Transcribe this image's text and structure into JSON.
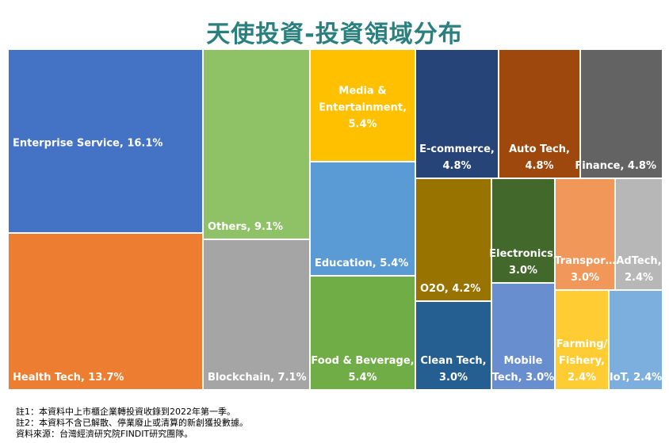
{
  "title": "天使投資-投資領域分布",
  "chart_data": {
    "type": "treemap",
    "title": "天使投資-投資領域分布",
    "items": [
      {
        "name": "Enterprise Service",
        "label_lines": [
          "Enterprise Service, 16.1%"
        ],
        "value": 16.1,
        "color": "#4472c4",
        "text_color": "#ffffff",
        "anchor": "start",
        "valign": "middle"
      },
      {
        "name": "Health Tech",
        "label_lines": [
          "Health Tech, 13.7%"
        ],
        "value": 13.7,
        "color": "#ed7d31",
        "text_color": "#ffffff",
        "anchor": "start",
        "valign": "bottom"
      },
      {
        "name": "Others",
        "label_lines": [
          "Others, 9.1%"
        ],
        "value": 9.1,
        "color": "#8fc166",
        "text_color": "#ffffff",
        "anchor": "start",
        "valign": "bottom"
      },
      {
        "name": "Blockchain",
        "label_lines": [
          "Blockchain, 7.1%"
        ],
        "value": 7.1,
        "color": "#a5a5a5",
        "text_color": "#ffffff",
        "anchor": "start",
        "valign": "bottom"
      },
      {
        "name": "Media & Entertainment",
        "label_lines": [
          "Media &",
          "Entertainment,",
          "5.4%"
        ],
        "value": 5.4,
        "color": "#ffc000",
        "text_color": "#ffffff",
        "anchor": "middle",
        "valign": "middle"
      },
      {
        "name": "Education",
        "label_lines": [
          "Education, 5.4%"
        ],
        "value": 5.4,
        "color": "#5b9bd5",
        "text_color": "#ffffff",
        "anchor": "start",
        "valign": "bottom"
      },
      {
        "name": "Food & Beverage",
        "label_lines": [
          "Food & Beverage,",
          "5.4%"
        ],
        "value": 5.4,
        "color": "#70ad47",
        "text_color": "#ffffff",
        "anchor": "middle",
        "valign": "bottom"
      },
      {
        "name": "E-commerce",
        "label_lines": [
          "E-commerce,",
          "4.8%"
        ],
        "value": 4.8,
        "color": "#264478",
        "text_color": "#ffffff",
        "anchor": "middle",
        "valign": "bottom"
      },
      {
        "name": "Auto Tech",
        "label_lines": [
          "Auto Tech,",
          "4.8%"
        ],
        "value": 4.8,
        "color": "#9e480e",
        "text_color": "#ffffff",
        "anchor": "middle",
        "valign": "bottom"
      },
      {
        "name": "Finance",
        "label_lines": [
          "Finance, 4.8%"
        ],
        "value": 4.8,
        "color": "#636363",
        "text_color": "#ffffff",
        "anchor": "end",
        "valign": "bottom"
      },
      {
        "name": "O2O",
        "label_lines": [
          "O2O, 4.2%"
        ],
        "value": 4.2,
        "color": "#997300",
        "text_color": "#ffffff",
        "anchor": "start",
        "valign": "bottom"
      },
      {
        "name": "Clean Tech",
        "label_lines": [
          "Clean Tech,",
          "3.0%"
        ],
        "value": 3.0,
        "color": "#255e91",
        "text_color": "#ffffff",
        "anchor": "middle",
        "valign": "bottom"
      },
      {
        "name": "Electronics",
        "label_lines": [
          "Electronics,",
          "3.0%"
        ],
        "value": 3.0,
        "color": "#43682b",
        "text_color": "#ffffff",
        "anchor": "middle",
        "valign": "bottom"
      },
      {
        "name": "Mobile Tech",
        "label_lines": [
          "Mobile",
          "Tech, 3.0%"
        ],
        "value": 3.0,
        "color": "#698ed0",
        "text_color": "#ffffff",
        "anchor": "middle",
        "valign": "bottom"
      },
      {
        "name": "Transportation",
        "label_lines": [
          "Transpor…",
          "3.0%"
        ],
        "value": 3.0,
        "color": "#f1975a",
        "text_color": "#ffffff",
        "anchor": "middle",
        "valign": "bottom"
      },
      {
        "name": "AdTech",
        "label_lines": [
          "AdTech,",
          "2.4%"
        ],
        "value": 2.4,
        "color": "#b7b7b7",
        "text_color": "#ffffff",
        "anchor": "middle",
        "valign": "bottom"
      },
      {
        "name": "Farming/Fishery",
        "label_lines": [
          "Farming/",
          "Fishery,",
          "2.4%"
        ],
        "value": 2.4,
        "color": "#ffcd33",
        "text_color": "#ffffff",
        "anchor": "middle",
        "valign": "bottom"
      },
      {
        "name": "IoT",
        "label_lines": [
          "IoT, 2.4%"
        ],
        "value": 2.4,
        "color": "#7cafdd",
        "text_color": "#ffffff",
        "anchor": "middle",
        "valign": "bottom"
      }
    ]
  },
  "notes": [
    "註1：本資料中上市櫃企業轉投資收錄到2022年第一季。",
    "註2：本資料不含已解散、停業廢止或清算的新創獲投數據。",
    "資料來源：台灣經濟研究院FINDIT研究團隊。"
  ]
}
